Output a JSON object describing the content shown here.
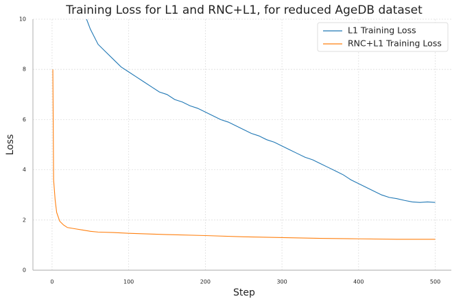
{
  "chart_data": {
    "type": "line",
    "title": "Training Loss for L1 and RNC+L1, for reduced AgeDB dataset",
    "xlabel": "Step",
    "ylabel": "Loss",
    "xlim": [
      -25,
      521
    ],
    "ylim": [
      0,
      10
    ],
    "xticks": [
      0,
      100,
      200,
      300,
      400,
      500
    ],
    "yticks": [
      0,
      2,
      4,
      6,
      8,
      10
    ],
    "grid": true,
    "legend": "upper right",
    "series": [
      {
        "name": "L1 Training Loss",
        "color": "#1f77b4",
        "x": [
          40,
          50,
          60,
          70,
          80,
          90,
          100,
          110,
          120,
          130,
          140,
          150,
          160,
          170,
          180,
          190,
          200,
          210,
          220,
          230,
          240,
          250,
          260,
          270,
          280,
          290,
          300,
          310,
          320,
          330,
          340,
          350,
          360,
          370,
          380,
          390,
          400,
          410,
          420,
          430,
          440,
          450,
          460,
          470,
          480,
          490,
          500
        ],
        "values": [
          10.4,
          9.6,
          9.0,
          8.7,
          8.4,
          8.1,
          7.9,
          7.7,
          7.5,
          7.3,
          7.1,
          7.0,
          6.8,
          6.7,
          6.55,
          6.45,
          6.3,
          6.15,
          6.0,
          5.9,
          5.75,
          5.6,
          5.45,
          5.35,
          5.2,
          5.1,
          4.95,
          4.8,
          4.65,
          4.5,
          4.4,
          4.25,
          4.1,
          3.95,
          3.8,
          3.6,
          3.45,
          3.3,
          3.15,
          3.0,
          2.9,
          2.85,
          2.78,
          2.72,
          2.7,
          2.72,
          2.7
        ]
      },
      {
        "name": "RNC+L1 Training Loss",
        "color": "#ff7f0e",
        "x": [
          1,
          2,
          4,
          6,
          10,
          15,
          20,
          30,
          40,
          50,
          60,
          80,
          100,
          120,
          150,
          200,
          250,
          300,
          350,
          400,
          450,
          500
        ],
        "values": [
          8.0,
          3.6,
          2.8,
          2.3,
          1.95,
          1.8,
          1.7,
          1.65,
          1.6,
          1.55,
          1.52,
          1.5,
          1.47,
          1.45,
          1.42,
          1.38,
          1.33,
          1.3,
          1.27,
          1.25,
          1.23,
          1.23
        ]
      }
    ]
  }
}
